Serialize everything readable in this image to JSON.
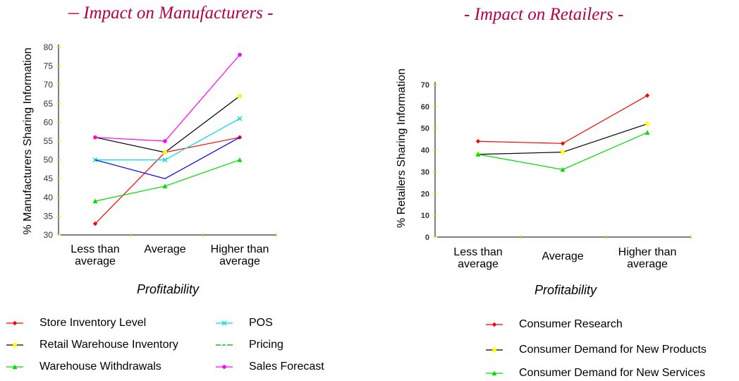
{
  "charts": {
    "left": {
      "title_dash": "–",
      "title": "Impact on Manufacturers -",
      "chart_data": {
        "type": "line",
        "title": "– Impact on Manufacturers -",
        "xlabel": "Profitability",
        "ylabel": "% Manufacturers Sharing Information",
        "categories": [
          "Less than average",
          "Average",
          "Higher than average"
        ],
        "category_lines": [
          [
            "Less than",
            "average"
          ],
          [
            "Average"
          ],
          [
            "Higher than",
            "average"
          ]
        ],
        "ylim": [
          30,
          80
        ],
        "yticks": [
          30,
          35,
          40,
          45,
          50,
          55,
          60,
          65,
          70,
          75,
          80
        ],
        "grid": false,
        "legend_position": "bottom",
        "series": [
          {
            "name": "Store Inventory Level",
            "values": [
              33,
              52,
              56
            ],
            "color": "#ff0000",
            "marker": "diamond"
          },
          {
            "name": "Retail Warehouse Inventory",
            "values": [
              56,
              52,
              67
            ],
            "color": "#000000",
            "marker": "square-yellow"
          },
          {
            "name": "Warehouse Withdrawals",
            "values": [
              39,
              43,
              50
            ],
            "color": "#00dd00",
            "marker": "triangle"
          },
          {
            "name": "POS",
            "values": [
              50,
              50,
              61
            ],
            "color": "#00dddd",
            "marker": "x"
          },
          {
            "name": "Pricing",
            "values": [
              50,
              45,
              56
            ],
            "color": "#0000ff",
            "marker": "none"
          },
          {
            "name": "Sales Forecast",
            "values": [
              56,
              55,
              78
            ],
            "color": "#ff00ff",
            "marker": "circle"
          }
        ]
      }
    },
    "right": {
      "title": "- Impact on Retailers -",
      "chart_data": {
        "type": "line",
        "title": "- Impact on Retailers -",
        "xlabel": "Profitability",
        "ylabel": "% Retailers Sharing Information",
        "categories": [
          "Less than average",
          "Average",
          "Higher than average"
        ],
        "category_lines": [
          [
            "Less than",
            "average"
          ],
          [
            "Average"
          ],
          [
            "Higher than",
            "average"
          ]
        ],
        "ylim": [
          0,
          70
        ],
        "yticks": [
          0,
          10,
          20,
          30,
          40,
          50,
          60,
          70
        ],
        "grid": false,
        "legend_position": "bottom",
        "series": [
          {
            "name": "Consumer Research",
            "values": [
              44,
              43,
              65
            ],
            "color": "#ff0000",
            "marker": "diamond"
          },
          {
            "name": "Consumer Demand for New Products",
            "values": [
              38,
              39,
              52
            ],
            "color": "#000000",
            "marker": "square-yellow"
          },
          {
            "name": "Consumer Demand for New Services",
            "values": [
              38,
              31,
              48
            ],
            "color": "#00dd00",
            "marker": "triangle"
          }
        ]
      }
    }
  },
  "legend_left": [
    {
      "label": "Store Inventory Level",
      "color": "#ff0000",
      "marker": "diamond"
    },
    {
      "label": "Retail Warehouse Inventory",
      "color": "#000000",
      "marker": "square-yellow"
    },
    {
      "label": "Warehouse Withdrawals",
      "color": "#00dd00",
      "marker": "triangle"
    },
    {
      "label": "POS",
      "color": "#00dddd",
      "marker": "x"
    },
    {
      "label": "Pricing",
      "color": "#00aa00",
      "marker": "dash"
    },
    {
      "label": "Sales Forecast",
      "color": "#ff00ff",
      "marker": "circle"
    }
  ],
  "legend_right": [
    {
      "label": "Consumer Research",
      "color": "#ff0000",
      "marker": "diamond"
    },
    {
      "label": "Consumer Demand for New Products",
      "color": "#000000",
      "marker": "square-yellow"
    },
    {
      "label": "Consumer Demand for New Services",
      "color": "#00dd00",
      "marker": "triangle"
    }
  ]
}
